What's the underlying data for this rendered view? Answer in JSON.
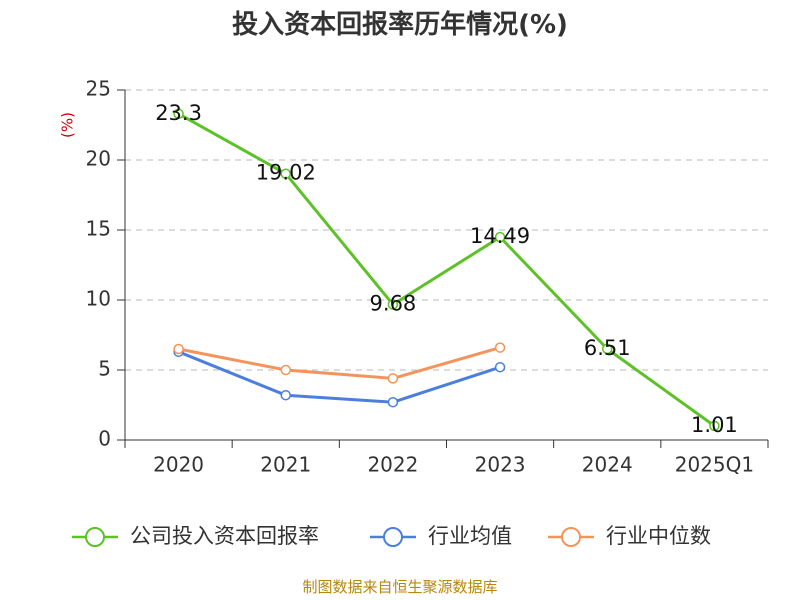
{
  "chart_data": {
    "type": "line",
    "title": "投入资本回报率历年情况(%)",
    "ylabel": "(%)",
    "categories": [
      "2020",
      "2021",
      "2022",
      "2023",
      "2024",
      "2025Q1"
    ],
    "ylim": [
      0,
      25
    ],
    "yticks": [
      0,
      5,
      10,
      15,
      20,
      25
    ],
    "grid": true,
    "legend_position": "bottom",
    "series": [
      {
        "name": "公司投入资本回报率",
        "color": "#5dc128",
        "values": [
          23.3,
          19.02,
          9.68,
          14.49,
          6.51,
          1.01
        ],
        "labels": [
          "23.3",
          "19.02",
          "9.68",
          "14.49",
          "6.51",
          "1.01"
        ]
      },
      {
        "name": "行业均值",
        "color": "#4b7fdb",
        "values": [
          6.3,
          3.2,
          2.7,
          5.2,
          null,
          null
        ]
      },
      {
        "name": "行业中位数",
        "color": "#f5945a",
        "values": [
          6.5,
          5.0,
          4.4,
          6.6,
          null,
          null
        ]
      }
    ]
  },
  "footer": {
    "source": "制图数据来自恒生聚源数据库"
  }
}
